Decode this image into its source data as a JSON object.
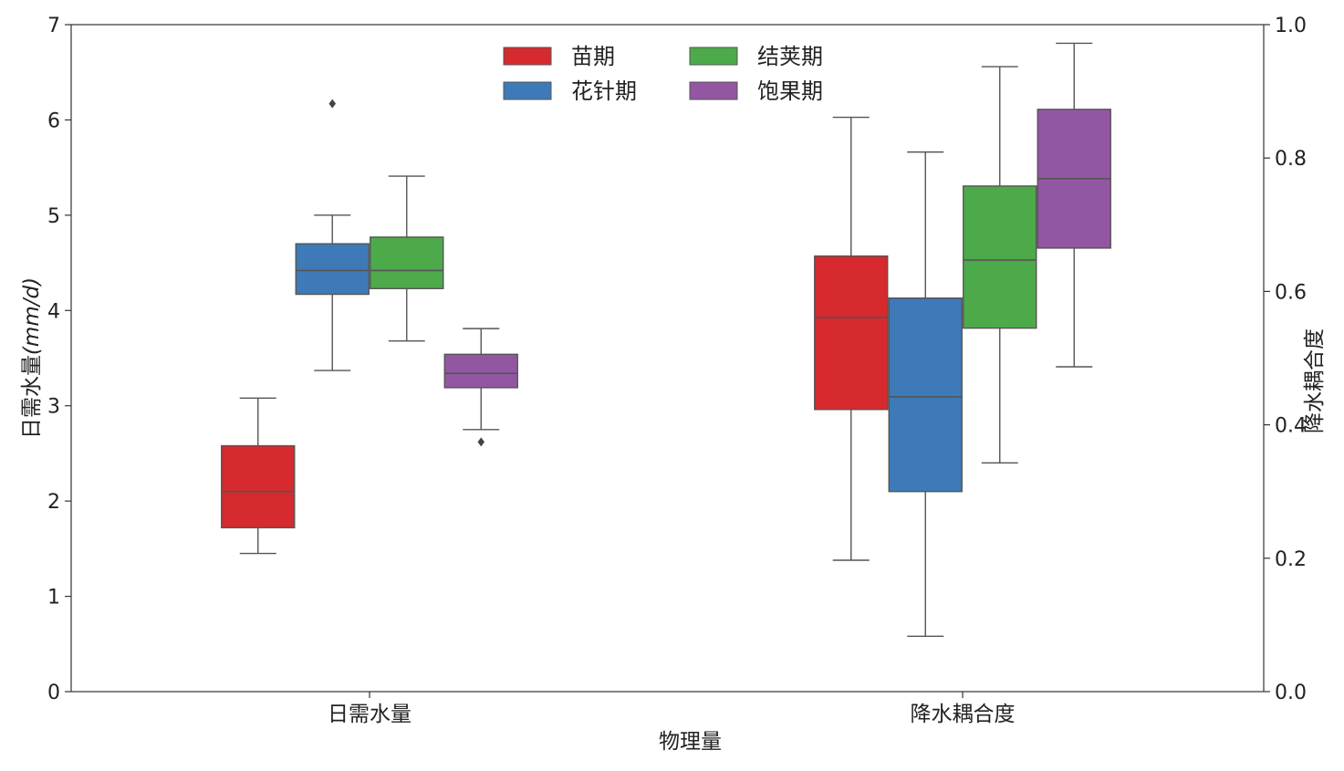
{
  "chart_data": {
    "type": "box",
    "xlabel": "物理量",
    "categories": [
      "日需水量",
      "降水耦合度"
    ],
    "left_axis": {
      "label": "日需水量(mm/d)",
      "label_main": "日需水量",
      "label_unit": "(mm/d)",
      "ylim": [
        0,
        7
      ],
      "ticks": [
        "0",
        "1",
        "2",
        "3",
        "4",
        "5",
        "6",
        "7"
      ]
    },
    "right_axis": {
      "label": "降水耦合度",
      "ylim": [
        0.0,
        1.0
      ],
      "ticks": [
        "0.0",
        "0.2",
        "0.4",
        "0.6",
        "0.8",
        "1.0"
      ]
    },
    "legend": {
      "placement": "top-center",
      "columns": 2
    },
    "series": [
      {
        "name": "苗期",
        "color": "#d62a2e",
        "boxes": [
          {
            "axis": "left",
            "whisker_low": 1.45,
            "q1": 1.72,
            "median": 2.1,
            "q3": 2.58,
            "whisker_high": 3.08,
            "outliers": []
          },
          {
            "axis": "right",
            "whisker_low": 0.197,
            "q1": 0.423,
            "median": 0.561,
            "q3": 0.653,
            "whisker_high": 0.861,
            "outliers": []
          }
        ]
      },
      {
        "name": "花针期",
        "color": "#3f7ab8",
        "boxes": [
          {
            "axis": "left",
            "whisker_low": 3.37,
            "q1": 4.17,
            "median": 4.42,
            "q3": 4.7,
            "whisker_high": 5.0,
            "outliers": [
              6.17
            ]
          },
          {
            "axis": "right",
            "whisker_low": 0.083,
            "q1": 0.3,
            "median": 0.442,
            "q3": 0.59,
            "whisker_high": 0.809,
            "outliers": []
          }
        ]
      },
      {
        "name": "结荚期",
        "color": "#4daa4a",
        "boxes": [
          {
            "axis": "left",
            "whisker_low": 3.68,
            "q1": 4.23,
            "median": 4.42,
            "q3": 4.77,
            "whisker_high": 5.41,
            "outliers": []
          },
          {
            "axis": "right",
            "whisker_low": 0.343,
            "q1": 0.545,
            "median": 0.647,
            "q3": 0.758,
            "whisker_high": 0.937,
            "outliers": []
          }
        ]
      },
      {
        "name": "饱果期",
        "color": "#9356a3",
        "boxes": [
          {
            "axis": "left",
            "whisker_low": 2.75,
            "q1": 3.19,
            "median": 3.34,
            "q3": 3.54,
            "whisker_high": 3.81,
            "outliers": [
              2.62
            ]
          },
          {
            "axis": "right",
            "whisker_low": 0.487,
            "q1": 0.665,
            "median": 0.769,
            "q3": 0.873,
            "whisker_high": 0.972,
            "outliers": []
          }
        ]
      }
    ]
  }
}
